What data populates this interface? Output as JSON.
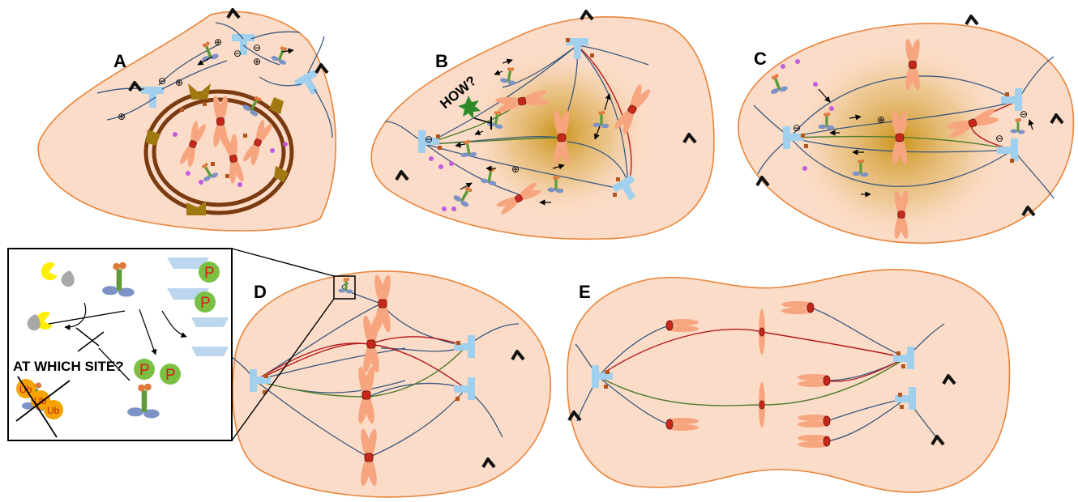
{
  "panels": {
    "a": "A",
    "b": "B",
    "c": "C",
    "d": "D",
    "e": "E"
  },
  "annotations": {
    "how": "HOW?",
    "which_site": "AT WHICH SITE?",
    "phospho": "P",
    "ubiquitin": "Ub",
    "plus": "⊕",
    "minus": "⊖"
  },
  "colors": {
    "cell_fill": "#fbdcc8",
    "cell_outline": "#e9843a",
    "chromosome": "#f7a57e",
    "kinetochore": "#c8281b",
    "microtubule": "#3a587e",
    "k_fiber_red": "#b3191c",
    "k_fiber_green": "#4f7c2b",
    "centrosome": "#a0d0ee",
    "pcm": "#b4541a",
    "nuclear_envelope": "#7a3a12",
    "nuclear_pore": "#a07a10",
    "chromatin_gradient": "#c98f10",
    "phosphate": "#7ac143",
    "ubiquitin": "#f5a300",
    "kinase_yellow": "#ffee00",
    "protein_grey": "#a8a8a8",
    "motor_blue": "#7d92c6"
  },
  "icons": [
    "centrosome-icon",
    "cilium-icon",
    "kinetochore-icon",
    "motor-protein-icon",
    "phosphate-icon",
    "ubiquitin-icon",
    "star-signal-icon"
  ]
}
